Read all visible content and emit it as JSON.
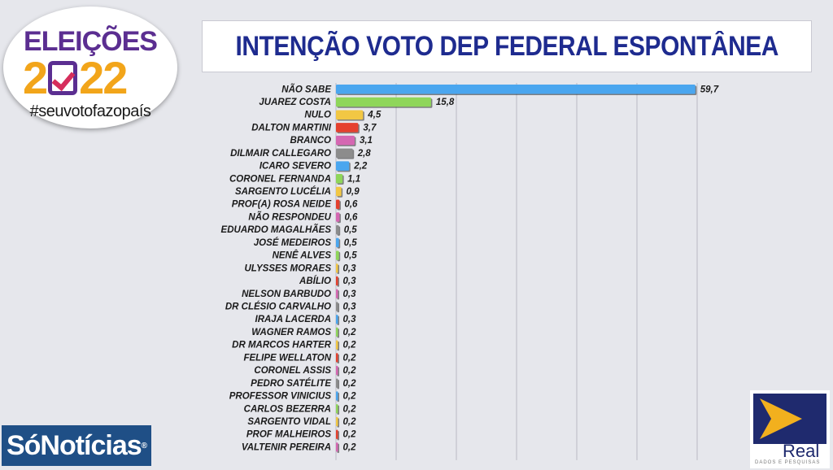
{
  "logo": {
    "line1": "ELEIÇÕES",
    "year_a": "2",
    "year_b": "22",
    "tagline": "#seuvotofazopaís"
  },
  "title": "INTENÇÃO VOTO DEP FEDERAL ESPONTÂNEA",
  "publisher": "SóNotícias",
  "publisher_mark": "®",
  "research": {
    "name": "Real",
    "subtitle": "DADOS E PESQUISAS"
  },
  "colors": {
    "title": "#1e2b8f",
    "palette": [
      "#4aa6ef",
      "#8fd65a",
      "#f2c744",
      "#e5402e",
      "#d567b2",
      "#8c8c8c"
    ]
  },
  "chart_data": {
    "type": "bar",
    "orientation": "horizontal",
    "title": "INTENÇÃO VOTO DEP FEDERAL ESPONTÂNEA",
    "categories": [
      "NÃO SABE",
      "JUAREZ COSTA",
      "NULO",
      "DALTON MARTINI",
      "BRANCO",
      "DILMAIR CALLEGARO",
      "ICARO SEVERO",
      "CORONEL FERNANDA",
      "SARGENTO LUCÉLIA",
      "PROF(A) ROSA NEIDE",
      "NÃO RESPONDEU",
      "EDUARDO MAGALHÃES",
      "JOSÉ MEDEIROS",
      "NENÊ ALVES",
      "ULYSSES MORAES",
      "ABÍLIO",
      "NELSON BARBUDO",
      "DR CLÉSIO CARVALHO",
      "IRAJA LACERDA",
      "WAGNER RAMOS",
      "DR MARCOS HARTER",
      "FELIPE WELLATON",
      "CORONEL ASSIS",
      "PEDRO SATÉLITE",
      "PROFESSOR VINICIUS",
      "CARLOS BEZERRA",
      "SARGENTO VIDAL",
      "PROF MALHEIROS",
      "VALTENIR PEREIRA"
    ],
    "values": [
      59.7,
      15.8,
      4.5,
      3.7,
      3.1,
      2.8,
      2.2,
      1.1,
      0.9,
      0.6,
      0.6,
      0.5,
      0.5,
      0.5,
      0.3,
      0.3,
      0.3,
      0.3,
      0.3,
      0.2,
      0.2,
      0.2,
      0.2,
      0.2,
      0.2,
      0.2,
      0.2,
      0.2,
      0.2
    ],
    "labels": [
      "59,7",
      "15,8",
      "4,5",
      "3,7",
      "3,1",
      "2,8",
      "2,2",
      "1,1",
      "0,9",
      "0,6",
      "0,6",
      "0,5",
      "0,5",
      "0,5",
      "0,3",
      "0,3",
      "0,3",
      "0,3",
      "0,3",
      "0,2",
      "0,2",
      "0,2",
      "0,2",
      "0,2",
      "0,2",
      "0,2",
      "0,2",
      "0,2",
      "0,2"
    ],
    "xlim": [
      0,
      60
    ],
    "grid": true,
    "legend": "none"
  }
}
